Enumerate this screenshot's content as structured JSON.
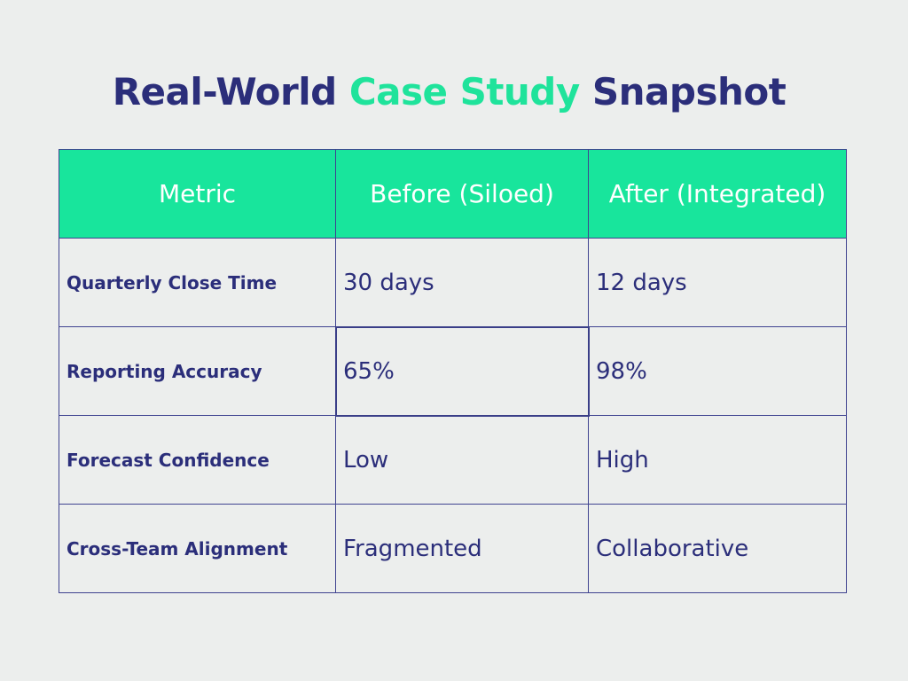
{
  "title": {
    "part1": "Real-World ",
    "accent": "Case Study",
    "part2": " Snapshot"
  },
  "colors": {
    "navy": "#2b2e7a",
    "accent_green": "#1fe39b",
    "header_bg": "#18e59c",
    "background": "#eceeed"
  },
  "table": {
    "headers": [
      "Metric",
      "Before (Siloed)",
      "After (Integrated)"
    ],
    "rows": [
      {
        "metric": "Quarterly Close Time",
        "before": "30 days",
        "after": "12 days"
      },
      {
        "metric": "Reporting Accuracy",
        "before": "65%",
        "after": "98%"
      },
      {
        "metric": "Forecast Confidence",
        "before": "Low",
        "after": "High"
      },
      {
        "metric": "Cross-Team Alignment",
        "before": "Fragmented",
        "after": "Collaborative"
      }
    ]
  }
}
